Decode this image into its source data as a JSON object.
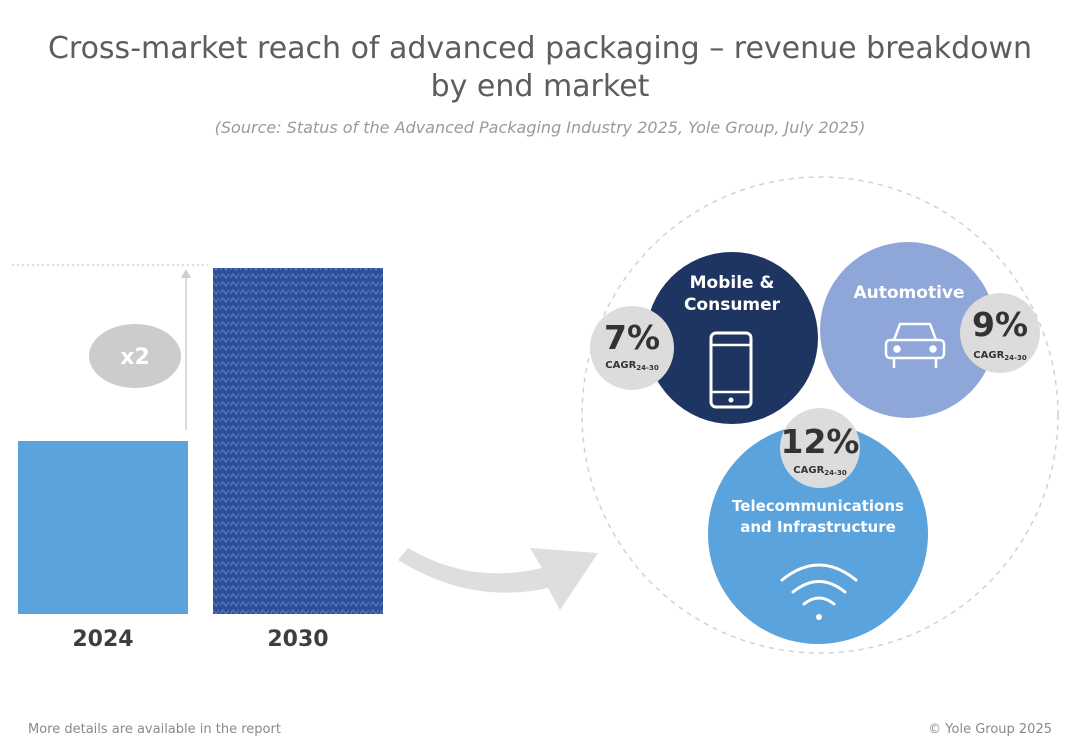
{
  "chart_data": {
    "type": "bar",
    "title_line1": "Cross-market reach of advanced packaging – revenue breakdown",
    "title_line2": "by end market",
    "subtitle": "(Source: Status of the Advanced Packaging Industry 2025, Yole Group, July 2025)",
    "categories": [
      "2024",
      "2030"
    ],
    "values": [
      1,
      2
    ],
    "multiplier_label": "x2",
    "bar_colors": [
      "#5ba3dc",
      "#2d4f9a"
    ],
    "segments": [
      {
        "name_line1": "Mobile &",
        "name_line2": "Consumer",
        "cagr": "7%",
        "icon": "smartphone-icon",
        "color": "#1e3461"
      },
      {
        "name_line1": "Automotive",
        "name_line2": "",
        "cagr": "9%",
        "icon": "car-icon",
        "color": "#8fa6d8"
      },
      {
        "name_line1": "Telecommunications",
        "name_line2": "and Infrastructure",
        "cagr": "12%",
        "icon": "wifi-icon",
        "color": "#5ba3dc"
      }
    ],
    "cagr_label": "CAGR",
    "cagr_period": "24-30"
  },
  "footer": {
    "left": "More details are available in the report",
    "right": "© Yole Group 2025"
  }
}
